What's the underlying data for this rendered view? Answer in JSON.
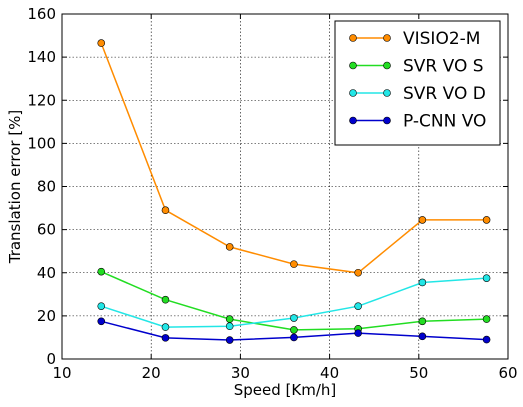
{
  "chart_data": {
    "type": "line",
    "xlabel": "Speed [Km/h]",
    "ylabel": "Translation error [%]",
    "xlim": [
      10,
      60
    ],
    "ylim": [
      0,
      160
    ],
    "xticks": [
      10,
      20,
      30,
      40,
      50,
      60
    ],
    "yticks": [
      0,
      20,
      40,
      60,
      80,
      100,
      120,
      140,
      160
    ],
    "grid": true,
    "legend_position": "top-right",
    "x": [
      14.4,
      21.6,
      28.8,
      36.0,
      43.2,
      50.4,
      57.6
    ],
    "series": [
      {
        "name": "VISIO2-M",
        "color": "#ff8c00",
        "values": [
          146.5,
          69.0,
          52.0,
          44.0,
          40.0,
          64.5,
          64.5
        ]
      },
      {
        "name": "SVR VO S",
        "color": "#22dd22",
        "values": [
          40.5,
          27.5,
          18.5,
          13.5,
          14.0,
          17.5,
          18.5
        ]
      },
      {
        "name": "SVR VO D",
        "color": "#22e6e6",
        "values": [
          24.5,
          14.8,
          15.2,
          19.0,
          24.5,
          35.5,
          37.5
        ]
      },
      {
        "name": "P-CNN VO",
        "color": "#0000cc",
        "values": [
          17.5,
          9.8,
          8.8,
          10.0,
          12.0,
          10.5,
          9.0
        ]
      }
    ]
  }
}
